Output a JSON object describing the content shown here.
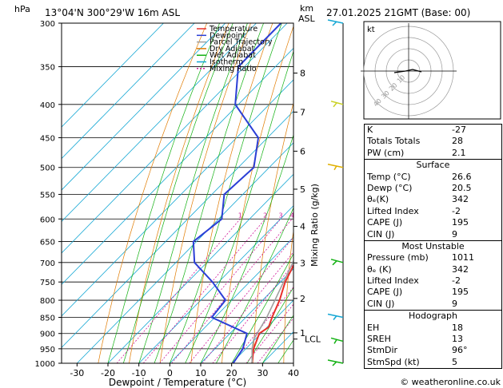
{
  "header": {
    "hpa_label": "hPa",
    "location": "13°04'N  300°29'W  16m  ASL",
    "km_label": "km",
    "asl_label": "ASL",
    "datetime": "27.01.2025  21GMT  (Base: 00)",
    "copyright": "© weatheronline.co.uk"
  },
  "legend": {
    "items": [
      {
        "label": "Temperature",
        "color": "#e8302a",
        "dash": ""
      },
      {
        "label": "Dewpoint",
        "color": "#2b3fd6",
        "dash": ""
      },
      {
        "label": "Parcel Trajectory",
        "color": "#a0a0a0",
        "dash": ""
      },
      {
        "label": "Dry Adiabat",
        "color": "#e07b00",
        "dash": ""
      },
      {
        "label": "Wet Adiabat",
        "color": "#10b010",
        "dash": ""
      },
      {
        "label": "Isotherm",
        "color": "#14a7d4",
        "dash": ""
      },
      {
        "label": "Mixing Ratio",
        "color": "#d01a9a",
        "dash": "2,2"
      }
    ]
  },
  "hodograph": {
    "label": "kt",
    "ring_labels": [
      "10",
      "20",
      "30",
      "40"
    ]
  },
  "indices": {
    "top": [
      {
        "label": "K",
        "value": "-27"
      },
      {
        "label": "Totals Totals",
        "value": "28"
      },
      {
        "label": "PW (cm)",
        "value": "2.1"
      }
    ],
    "surface_title": "Surface",
    "surface": [
      {
        "label": "Temp (°C)",
        "value": "26.6"
      },
      {
        "label": "Dewp (°C)",
        "value": "20.5"
      },
      {
        "label": "θₑ(K)",
        "value": "342"
      },
      {
        "label": "Lifted Index",
        "value": "-2"
      },
      {
        "label": "CAPE (J)",
        "value": "195"
      },
      {
        "label": "CIN (J)",
        "value": "9"
      }
    ],
    "unstable_title": "Most Unstable",
    "unstable": [
      {
        "label": "Pressure (mb)",
        "value": "1011"
      },
      {
        "label": "θₑ (K)",
        "value": "342"
      },
      {
        "label": "Lifted Index",
        "value": "-2"
      },
      {
        "label": "CAPE (J)",
        "value": "195"
      },
      {
        "label": "CIN (J)",
        "value": "9"
      }
    ],
    "hodo_title": "Hodograph",
    "hodo": [
      {
        "label": "EH",
        "value": "18"
      },
      {
        "label": "SREH",
        "value": "13"
      },
      {
        "label": "StmDir",
        "value": "96°"
      },
      {
        "label": "StmSpd (kt)",
        "value": "5"
      }
    ]
  },
  "chart_data": {
    "type": "line",
    "title": "",
    "xlabel": "Dewpoint / Temperature (°C)",
    "ylabel_right": "Mixing Ratio (g/kg)",
    "xlim": [
      -35,
      40
    ],
    "ylim": [
      1000,
      300
    ],
    "x_ticks": [
      -30,
      -20,
      -10,
      0,
      10,
      20,
      30,
      40
    ],
    "pressure_ticks": [
      300,
      350,
      400,
      450,
      500,
      550,
      600,
      650,
      700,
      750,
      800,
      850,
      900,
      950,
      1000
    ],
    "km_ticks": [
      {
        "label": "8",
        "p": 358
      },
      {
        "label": "7",
        "p": 411
      },
      {
        "label": "6",
        "p": 472
      },
      {
        "label": "5",
        "p": 540
      },
      {
        "label": "4",
        "p": 616
      },
      {
        "label": "3",
        "p": 701
      },
      {
        "label": "2",
        "p": 795
      },
      {
        "label": "1",
        "p": 898
      },
      {
        "label": "LCL",
        "p": 918
      }
    ],
    "mixing_ratio_labels": [
      "1",
      "2",
      "3",
      "4",
      "6",
      "8",
      "10",
      "15",
      "20",
      "25"
    ],
    "mixing_ratio_values": [
      1,
      2,
      3,
      4,
      6,
      8,
      10,
      15,
      20,
      25
    ],
    "grid": true,
    "series": [
      {
        "name": "Temperature",
        "color": "#e8302a",
        "p": [
          1000,
          950,
          900,
          880,
          850,
          800,
          750,
          700,
          650,
          600,
          550,
          500,
          450,
          400,
          350,
          300
        ],
        "t": [
          26.6,
          22.5,
          19.5,
          20.5,
          18.5,
          15.5,
          11.5,
          8.5,
          5.0,
          0.5,
          -4.5,
          -10.0,
          -16.5,
          -24.0,
          -33.0,
          -42.0
        ]
      },
      {
        "name": "Dewpoint",
        "color": "#2b3fd6",
        "p": [
          1000,
          950,
          900,
          850,
          800,
          750,
          700,
          650,
          600,
          550,
          500,
          450,
          400,
          350,
          300
        ],
        "t": [
          20.5,
          19.0,
          15.5,
          -1.0,
          -2.0,
          -12.0,
          -24.0,
          -31.0,
          -29.0,
          -36.0,
          -35.0,
          -43.0,
          -61.0,
          -72.0,
          -72.0
        ]
      },
      {
        "name": "Parcel Trajectory",
        "color": "#a0a0a0",
        "p": [
          1000,
          950,
          918,
          900,
          850,
          800,
          750,
          700,
          650,
          600,
          550,
          500,
          450,
          400,
          350,
          300
        ],
        "t": [
          26.6,
          22.0,
          19.5,
          18.8,
          16.8,
          14.0,
          11.0,
          7.8,
          4.0,
          0.0,
          -4.5,
          -9.8,
          -16.0,
          -23.5,
          -32.5,
          -43.0
        ]
      }
    ]
  }
}
